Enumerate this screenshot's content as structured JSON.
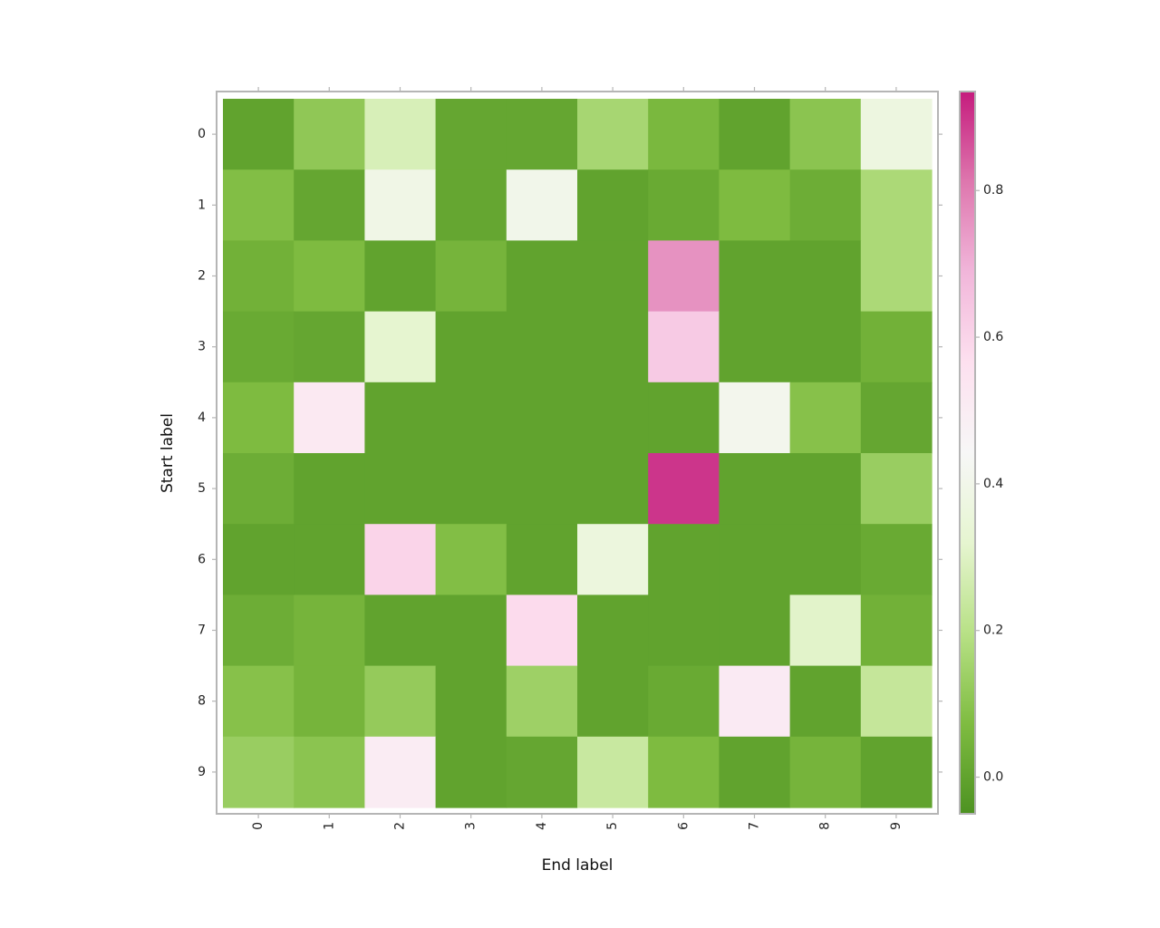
{
  "chart_data": {
    "type": "heatmap",
    "title": "",
    "xlabel": "End label",
    "ylabel": "Start label",
    "x_categories": [
      "0",
      "1",
      "2",
      "3",
      "4",
      "5",
      "6",
      "7",
      "8",
      "9"
    ],
    "y_categories": [
      "0",
      "1",
      "2",
      "3",
      "4",
      "5",
      "6",
      "7",
      "8",
      "9"
    ],
    "values": [
      [
        0.0,
        0.11,
        0.28,
        0.01,
        0.01,
        0.16,
        0.06,
        0.0,
        0.1,
        0.37
      ],
      [
        0.08,
        0.01,
        0.39,
        0.01,
        0.4,
        0.0,
        0.02,
        0.07,
        0.03,
        0.17
      ],
      [
        0.04,
        0.07,
        0.0,
        0.05,
        0.0,
        0.0,
        0.76,
        0.0,
        0.0,
        0.17
      ],
      [
        0.02,
        0.01,
        0.32,
        0.0,
        0.0,
        0.0,
        0.63,
        0.0,
        0.0,
        0.04
      ],
      [
        0.07,
        0.52,
        0.0,
        0.0,
        0.0,
        0.0,
        0.0,
        0.41,
        0.09,
        0.01
      ],
      [
        0.03,
        0.0,
        0.0,
        0.0,
        0.0,
        0.0,
        0.9,
        0.0,
        0.0,
        0.13
      ],
      [
        0.0,
        0.0,
        0.6,
        0.08,
        0.0,
        0.36,
        0.0,
        0.0,
        0.0,
        0.02
      ],
      [
        0.03,
        0.05,
        0.0,
        0.0,
        0.58,
        0.0,
        0.0,
        0.0,
        0.31,
        0.04
      ],
      [
        0.09,
        0.05,
        0.12,
        0.0,
        0.14,
        0.0,
        0.02,
        0.51,
        0.0,
        0.23
      ],
      [
        0.13,
        0.1,
        0.5,
        0.0,
        0.01,
        0.24,
        0.07,
        0.0,
        0.05,
        0.0
      ]
    ],
    "colorbar": {
      "min": -0.05,
      "max": 0.935,
      "ticks": [
        "0.0",
        "0.2",
        "0.4",
        "0.6",
        "0.8"
      ],
      "tick_values": [
        0.0,
        0.2,
        0.4,
        0.6,
        0.8
      ],
      "colormap": "PiYG",
      "colors": [
        "#4d9221",
        "#7fbc41",
        "#b8e186",
        "#e6f5d0",
        "#f7f7f7",
        "#fde0ef",
        "#f1b6da",
        "#de77ae",
        "#c51b7d"
      ]
    },
    "grid": false
  }
}
